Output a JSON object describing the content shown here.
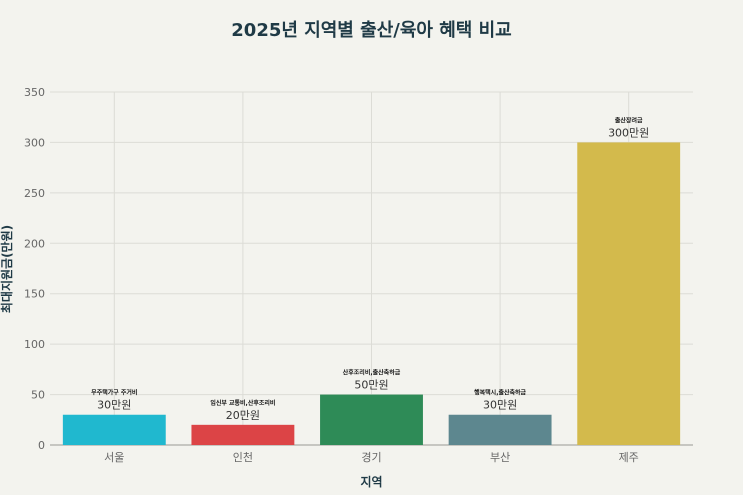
{
  "chart_data": {
    "type": "bar",
    "title": "2025년 지역별 출산/육아 혜택 비교",
    "xlabel": "지역",
    "ylabel": "최대지원금(만원)",
    "categories": [
      "서울",
      "인천",
      "경기",
      "부산",
      "제주"
    ],
    "values": [
      30,
      20,
      50,
      30,
      300
    ],
    "ylim": [
      0,
      350
    ],
    "yticks": [
      0,
      50,
      100,
      150,
      200,
      250,
      300,
      350
    ],
    "grid": true,
    "bar_colors": [
      "#20b8cf",
      "#dc4446",
      "#2e8b57",
      "#5d878f",
      "#d3ba4c"
    ],
    "bar_top_labels": [
      "무주택가구 주거비",
      "임신부 교통비,산후조리비",
      "산후조리비,출산축하금",
      "행복택시,출산축하금",
      "출산장려금"
    ],
    "bar_value_labels": [
      "30만원",
      "20만원",
      "50만원",
      "30만원",
      "300만원"
    ]
  },
  "colors": {
    "background": "#f3f3ee",
    "title": "#1f3a46"
  }
}
